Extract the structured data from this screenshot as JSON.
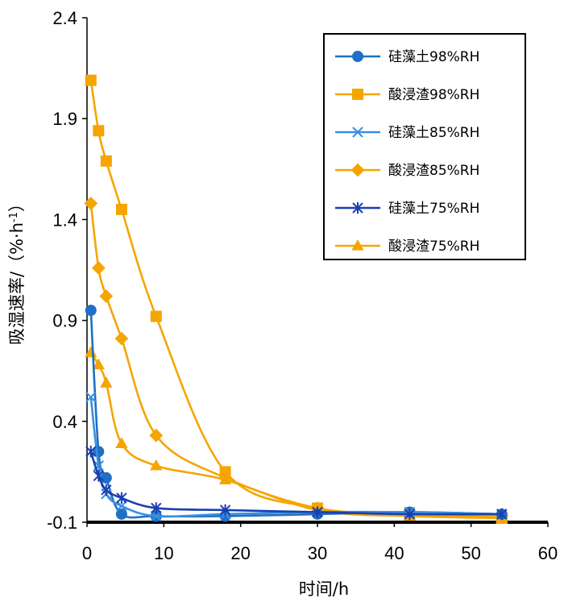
{
  "chart_data": {
    "type": "line",
    "title": "",
    "xlabel": "时间/h",
    "ylabel_main": "吸湿速率/（%·h",
    "ylabel_sup": "-1",
    "ylabel_close": "）",
    "xlim": [
      0,
      60
    ],
    "ylim": [
      -0.1,
      2.4
    ],
    "xticks": [
      0,
      10,
      20,
      30,
      40,
      50,
      60
    ],
    "xtick_labels": [
      "0",
      "10",
      "20",
      "30",
      "40",
      "50",
      "60"
    ],
    "yticks": [
      -0.1,
      0.4,
      0.9,
      1.4,
      1.9,
      2.4
    ],
    "ytick_labels": [
      "-0.1",
      "0.4",
      "0.9",
      "1.4",
      "1.9",
      "2.4"
    ],
    "grid": false,
    "legend_position": "top-right",
    "series": [
      {
        "name": "硅藻土98%RH",
        "color": "#1f6fc5",
        "marker": "circle",
        "x": [
          0.5,
          1.5,
          2.5,
          4.5,
          9,
          18,
          30,
          42,
          54
        ],
        "y": [
          0.95,
          0.25,
          0.12,
          -0.06,
          -0.07,
          -0.07,
          -0.06,
          -0.05,
          -0.06
        ]
      },
      {
        "name": "酸浸渣98%RH",
        "color": "#f5a500",
        "marker": "square",
        "x": [
          0.5,
          1.5,
          2.5,
          4.5,
          9,
          18,
          30,
          42,
          54
        ],
        "y": [
          2.09,
          1.84,
          1.69,
          1.45,
          0.92,
          0.15,
          -0.03,
          -0.06,
          -0.08
        ]
      },
      {
        "name": "硅藻土85%RH",
        "color": "#3a8fe0",
        "marker": "x",
        "x": [
          0.5,
          1.5,
          2.5,
          4.5,
          9,
          18,
          30,
          42,
          54
        ],
        "y": [
          0.52,
          0.18,
          0.04,
          -0.02,
          -0.07,
          -0.06,
          -0.05,
          -0.05,
          -0.06
        ]
      },
      {
        "name": "酸浸渣85%RH",
        "color": "#f5a500",
        "marker": "diamond",
        "x": [
          0.5,
          1.5,
          2.5,
          4.5,
          9,
          18,
          30,
          42,
          54
        ],
        "y": [
          1.48,
          1.16,
          1.02,
          0.81,
          0.33,
          0.12,
          -0.03,
          -0.06,
          -0.07
        ]
      },
      {
        "name": "硅藻土75%RH",
        "color": "#1a3fb0",
        "marker": "star",
        "x": [
          0.5,
          1.5,
          2.5,
          4.5,
          9,
          18,
          30,
          42,
          54
        ],
        "y": [
          0.25,
          0.13,
          0.06,
          0.02,
          -0.03,
          -0.04,
          -0.05,
          -0.06,
          -0.06
        ]
      },
      {
        "name": "酸浸渣75%RH",
        "color": "#f5a500",
        "marker": "triangle",
        "x": [
          0.5,
          1.5,
          2.5,
          4.5,
          9,
          18,
          30,
          42,
          54
        ],
        "y": [
          0.74,
          0.68,
          0.59,
          0.29,
          0.18,
          0.11,
          -0.04,
          -0.07,
          -0.08
        ]
      }
    ]
  }
}
